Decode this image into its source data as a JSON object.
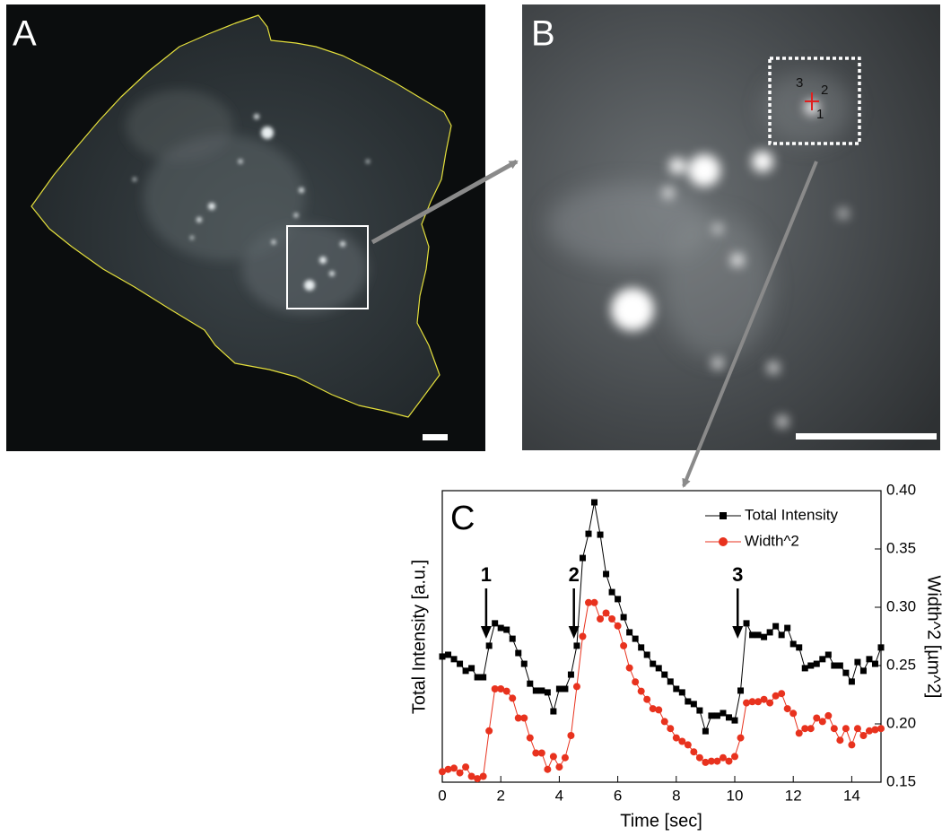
{
  "panel_labels": [
    "A",
    "B"
  ],
  "panel_b_marks": [
    "3",
    "2",
    "1"
  ],
  "chart_data": {
    "type": "line",
    "title": "C",
    "x_label": "Time [sec]",
    "y_label": "Total Intensity [a.u.]",
    "y2_label": "Width^2 [µm^2]",
    "x": [
      0,
      0.2,
      0.4,
      0.6,
      0.8,
      1.0,
      1.2,
      1.4,
      1.6,
      1.8,
      2.0,
      2.2,
      2.4,
      2.6,
      2.8,
      3.0,
      3.2,
      3.4,
      3.6,
      3.8,
      4.0,
      4.2,
      4.4,
      4.6,
      4.8,
      5.0,
      5.2,
      5.4,
      5.6,
      5.8,
      6.0,
      6.2,
      6.4,
      6.6,
      6.8,
      7.0,
      7.2,
      7.4,
      7.6,
      7.8,
      8.0,
      8.2,
      8.4,
      8.6,
      8.8,
      9.0,
      9.2,
      9.4,
      9.6,
      9.8,
      10.0,
      10.2,
      10.4,
      10.6,
      10.8,
      11.0,
      11.2,
      11.4,
      11.6,
      11.8,
      12.0,
      12.2,
      12.4,
      12.6,
      12.8,
      13.0,
      13.2,
      13.4,
      13.6,
      13.8,
      14.0,
      14.2,
      14.4,
      14.6,
      14.8,
      15.0
    ],
    "xlim": [
      0,
      15
    ],
    "xticks": [
      0,
      2,
      4,
      6,
      8,
      10,
      12,
      14
    ],
    "ylim": [
      0,
      1
    ],
    "y2lim": [
      0.15,
      0.4
    ],
    "y2ticks": [
      0.15,
      {
        "value": 0.2,
        "label": "0.20"
      },
      0.25,
      {
        "value": 0.3,
        "label": "0.30"
      },
      0.35,
      {
        "value": 0.4,
        "label": "0.40"
      }
    ],
    "series": [
      {
        "name": "Total Intensity",
        "color": "#000000",
        "marker": "square",
        "values": [
          0.431,
          0.437,
          0.422,
          0.406,
          0.382,
          0.391,
          0.36,
          0.36,
          0.468,
          0.545,
          0.529,
          0.523,
          0.492,
          0.443,
          0.406,
          0.338,
          0.314,
          0.314,
          0.308,
          0.243,
          0.32,
          0.32,
          0.369,
          0.468,
          0.769,
          0.852,
          0.96,
          0.849,
          0.714,
          0.652,
          0.628,
          0.566,
          0.514,
          0.492,
          0.462,
          0.437,
          0.406,
          0.391,
          0.369,
          0.345,
          0.32,
          0.308,
          0.277,
          0.268,
          0.246,
          0.175,
          0.228,
          0.228,
          0.237,
          0.222,
          0.212,
          0.314,
          0.545,
          0.505,
          0.505,
          0.498,
          0.514,
          0.535,
          0.505,
          0.529,
          0.474,
          0.462,
          0.391,
          0.4,
          0.406,
          0.422,
          0.437,
          0.4,
          0.4,
          0.375,
          0.345,
          0.412,
          0.382,
          0.422,
          0.406,
          0.462
        ]
      },
      {
        "name": "Width^2",
        "color": "#e8321e",
        "marker": "circle",
        "axis": "y2",
        "values": [
          0.159,
          0.161,
          0.162,
          0.158,
          0.163,
          0.155,
          0.153,
          0.155,
          0.194,
          0.23,
          0.23,
          0.228,
          0.222,
          0.205,
          0.205,
          0.188,
          0.175,
          0.175,
          0.161,
          0.172,
          0.163,
          0.171,
          0.19,
          0.232,
          0.275,
          0.304,
          0.304,
          0.29,
          0.295,
          0.29,
          0.284,
          0.267,
          0.248,
          0.236,
          0.228,
          0.221,
          0.213,
          0.212,
          0.202,
          0.196,
          0.188,
          0.185,
          0.182,
          0.176,
          0.171,
          0.167,
          0.168,
          0.168,
          0.171,
          0.168,
          0.172,
          0.188,
          0.218,
          0.219,
          0.219,
          0.221,
          0.218,
          0.224,
          0.226,
          0.213,
          0.209,
          0.192,
          0.196,
          0.196,
          0.205,
          0.202,
          0.207,
          0.196,
          0.186,
          0.196,
          0.182,
          0.196,
          0.19,
          0.194,
          0.195,
          0.196
        ]
      }
    ],
    "annotations": [
      {
        "text": "1",
        "x": 1.5
      },
      {
        "text": "2",
        "x": 4.5
      },
      {
        "text": "3",
        "x": 10.1
      }
    ],
    "legend": "upper right"
  }
}
